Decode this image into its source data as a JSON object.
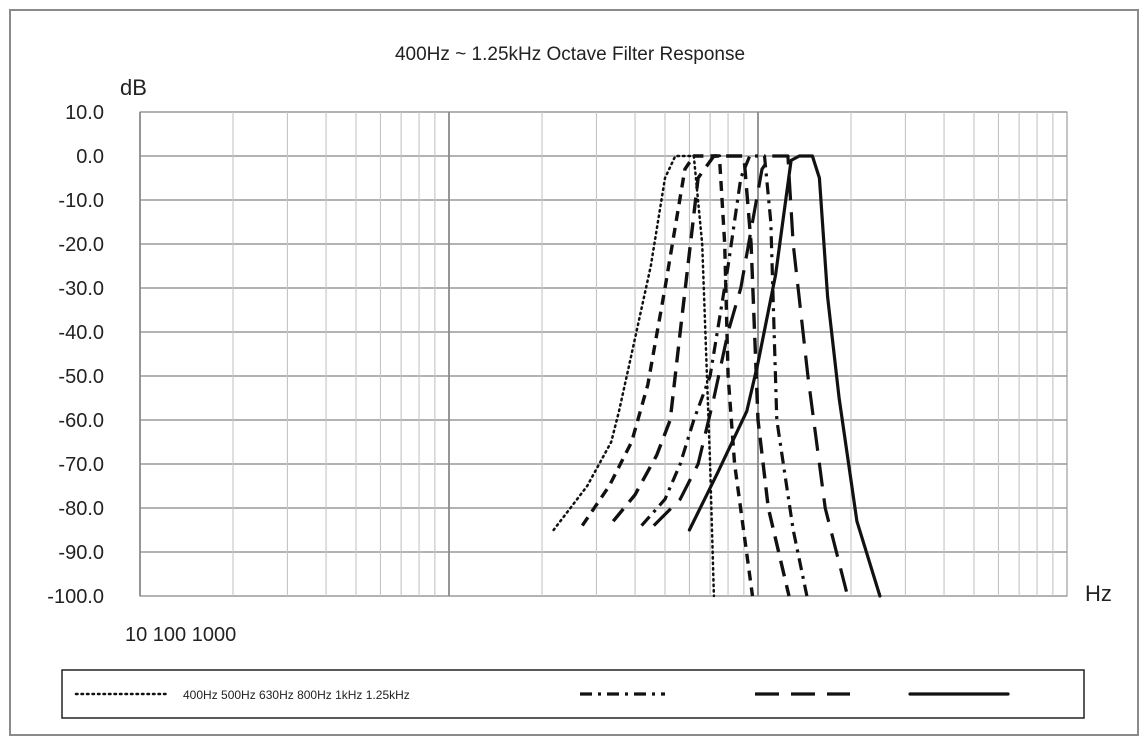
{
  "chart_data": {
    "type": "line",
    "title": "400Hz ~ 1.25kHz Octave Filter Response",
    "ylabel": "dB",
    "xlabel": "Hz",
    "x_tick_label_text": "10 100 1000",
    "xscale": "log",
    "xlim": [
      10,
      10000
    ],
    "ylim": [
      -100,
      10
    ],
    "y_ticks": [
      10,
      0,
      -10,
      -20,
      -30,
      -40,
      -50,
      -60,
      -70,
      -80,
      -90,
      -100
    ],
    "y_tick_labels": [
      "10.0",
      "0.0",
      "-10.0",
      "-20.0",
      "-30.0",
      "-40.0",
      "-50.0",
      "-60.0",
      "-70.0",
      "-80.0",
      "-90.0",
      "-100.0"
    ],
    "grid": true,
    "legend_position": "bottom",
    "legend_text": "400Hz 500Hz 630Hz 800Hz 1kHz 1.25kHz",
    "series": [
      {
        "name": "400Hz",
        "style": "dotted",
        "x": [
          218,
          280,
          335,
          355,
          390,
          450,
          500,
          540,
          580,
          620,
          660,
          700,
          720
        ],
        "y": [
          -85,
          -75,
          -65,
          -58,
          -45,
          -25,
          -5,
          0,
          0,
          0,
          -20,
          -70,
          -100
        ]
      },
      {
        "name": "500Hz",
        "style": "short-dash",
        "x": [
          270,
          330,
          390,
          440,
          500,
          580,
          620,
          660,
          700,
          750,
          780,
          800,
          840,
          960
        ],
        "y": [
          -84,
          -75,
          -65,
          -52,
          -30,
          -3,
          0,
          0,
          0,
          0,
          -20,
          -50,
          -70,
          -100
        ]
      },
      {
        "name": "630Hz",
        "style": "dash",
        "x": [
          340,
          400,
          470,
          520,
          560,
          640,
          720,
          780,
          840,
          900,
          950,
          1000,
          1080,
          1260
        ],
        "y": [
          -83,
          -77,
          -68,
          -60,
          -40,
          -5,
          0,
          0,
          0,
          0,
          -20,
          -60,
          -80,
          -100
        ]
      },
      {
        "name": "800Hz",
        "style": "dash-dot",
        "x": [
          420,
          500,
          560,
          620,
          700,
          800,
          880,
          940,
          1000,
          1050,
          1100,
          1150,
          1300,
          1440
        ],
        "y": [
          -84,
          -78,
          -70,
          -60,
          -50,
          -25,
          -5,
          0,
          0,
          0,
          -15,
          -60,
          -85,
          -100
        ]
      },
      {
        "name": "1kHz",
        "style": "long-dash",
        "x": [
          460,
          560,
          640,
          720,
          800,
          880,
          960,
          1030,
          1100,
          1180,
          1250,
          1300,
          1450,
          1650,
          1950
        ],
        "y": [
          -84,
          -78,
          -70,
          -55,
          -40,
          -30,
          -15,
          -3,
          0,
          0,
          0,
          -20,
          -50,
          -80,
          -100
        ]
      },
      {
        "name": "1.25kHz",
        "style": "solid",
        "x": [
          600,
          740,
          920,
          1000,
          1140,
          1280,
          1360,
          1420,
          1500,
          1580,
          1680,
          1830,
          2090,
          2480
        ],
        "y": [
          -85,
          -72,
          -58,
          -47,
          -27,
          -1,
          0,
          0,
          0,
          -5,
          -32,
          -55,
          -83,
          -100
        ]
      }
    ]
  }
}
